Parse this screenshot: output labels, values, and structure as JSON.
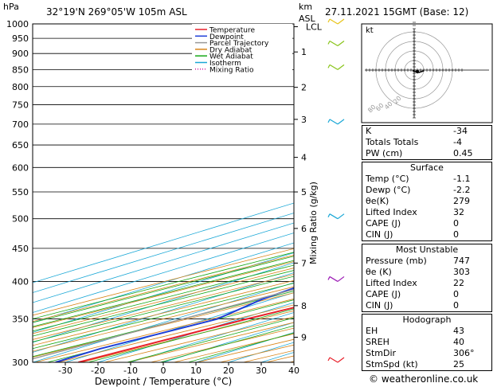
{
  "header": {
    "hpa_label": "hPa",
    "location": "32°19'N  269°05'W  105m  ASL",
    "km_label": "km",
    "asl_label": "ASL",
    "datetime": "27.11.2021  15GMT  (Base: 12)"
  },
  "chart_data": {
    "type": "line",
    "title": "32°19'N  269°05'W  105m  ASL",
    "xlabel": "Dewpoint / Temperature (°C)",
    "ylabel": "hPa",
    "right_label": "Mixing Ratio (g/kg)",
    "xlim": [
      -40,
      40
    ],
    "ylim": [
      1000,
      300
    ],
    "y_scale": "log",
    "x_ticks": [
      -30,
      -20,
      -10,
      0,
      10,
      20,
      30,
      40
    ],
    "p_ticks": [
      300,
      350,
      400,
      450,
      500,
      550,
      600,
      650,
      700,
      750,
      800,
      850,
      900,
      950,
      1000
    ],
    "km_ticks": [
      {
        "label": "9",
        "p": 328
      },
      {
        "label": "8",
        "p": 367
      },
      {
        "label": "7",
        "p": 427
      },
      {
        "label": "6",
        "p": 483
      },
      {
        "label": "5",
        "p": 550
      },
      {
        "label": "4",
        "p": 622
      },
      {
        "label": "3",
        "p": 712
      },
      {
        "label": "2",
        "p": 798
      },
      {
        "label": "1",
        "p": 905
      },
      {
        "label": "LCL",
        "p": 990
      }
    ],
    "mixing_ratio_labels": [
      "2",
      "3",
      "4",
      "6",
      "8",
      "10",
      "15",
      "20",
      "25"
    ],
    "mixing_ratio_label_p": 582,
    "legend": [
      {
        "name": "Temperature",
        "color": "#e8202a"
      },
      {
        "name": "Dewpoint",
        "color": "#1f3fd8"
      },
      {
        "name": "Parcel Trajectory",
        "color": "#999999"
      },
      {
        "name": "Dry Adiabat",
        "color": "#d9851a"
      },
      {
        "name": "Wet Adiabat",
        "color": "#17a817"
      },
      {
        "name": "Isotherm",
        "color": "#19a7d6"
      },
      {
        "name": "Mixing Ratio",
        "color": "#d0199f"
      }
    ],
    "series": [
      {
        "name": "Temperature",
        "color": "#e8202a",
        "points": [
          [
            -1.1,
            1000
          ],
          [
            -0.5,
            990
          ],
          [
            3,
            970
          ],
          [
            4,
            950
          ],
          [
            7,
            920
          ],
          [
            9,
            900
          ],
          [
            11,
            850
          ],
          [
            11,
            800
          ],
          [
            12,
            750
          ],
          [
            12,
            700
          ],
          [
            10,
            650
          ],
          [
            8,
            600
          ],
          [
            4,
            550
          ],
          [
            0,
            500
          ],
          [
            -3,
            450
          ],
          [
            -7,
            420
          ],
          [
            -12,
            380
          ],
          [
            -18,
            350
          ],
          [
            -26,
            300
          ]
        ]
      },
      {
        "name": "Dewpoint",
        "color": "#1f3fd8",
        "points": [
          [
            -2.2,
            1000
          ],
          [
            -4,
            990
          ],
          [
            -8,
            975
          ],
          [
            -11,
            955
          ],
          [
            -45,
            945
          ],
          [
            -15,
            920
          ],
          [
            -45,
            892
          ],
          [
            -48,
            853
          ],
          [
            -44,
            820
          ],
          [
            -38,
            790
          ],
          [
            -26,
            750
          ],
          [
            -12,
            740
          ],
          [
            -15,
            718
          ],
          [
            -24,
            707
          ],
          [
            -13,
            690
          ],
          [
            -16,
            640
          ],
          [
            -17,
            600
          ],
          [
            -37,
            560
          ],
          [
            -48,
            540
          ],
          [
            -40,
            525
          ],
          [
            -56,
            510
          ],
          [
            -53,
            500
          ],
          [
            -43,
            475
          ],
          [
            -43,
            445
          ],
          [
            -36,
            430
          ],
          [
            -45,
            410
          ],
          [
            -35,
            395
          ],
          [
            -33,
            375
          ],
          [
            -27,
            350
          ],
          [
            -33,
            315
          ],
          [
            -33,
            300
          ]
        ]
      },
      {
        "name": "Parcel Trajectory",
        "color": "#999999",
        "points": [
          [
            -1.1,
            1000
          ],
          [
            -2,
            990
          ],
          [
            -5,
            900
          ],
          [
            -8,
            800
          ],
          [
            -12,
            700
          ],
          [
            -17,
            600
          ],
          [
            -23,
            500
          ],
          [
            -32,
            400
          ],
          [
            -44,
            300
          ]
        ]
      }
    ],
    "wind_barbs": [
      {
        "p": 300,
        "color": "#e8202a"
      },
      {
        "p": 400,
        "color": "#9b19b5"
      },
      {
        "p": 500,
        "color": "#19a7d6"
      },
      {
        "p": 700,
        "color": "#19a7d6"
      },
      {
        "p": 850,
        "color": "#88c419"
      },
      {
        "p": 925,
        "color": "#88c419"
      },
      {
        "p": 1000,
        "color": "#e8c419"
      }
    ]
  },
  "hodograph": {
    "unit_label": "kt",
    "ring_labels": [
      "20",
      "40",
      "60",
      "80"
    ]
  },
  "indices": [
    {
      "label": "K",
      "value": "-34"
    },
    {
      "label": "Totals Totals",
      "value": "-4"
    },
    {
      "label": "PW (cm)",
      "value": "0.45"
    }
  ],
  "surface": {
    "title": "Surface",
    "rows": [
      {
        "label": "Temp (°C)",
        "value": "-1.1"
      },
      {
        "label": "Dewp (°C)",
        "value": "-2.2"
      },
      {
        "label": "θe(K)",
        "value": "279"
      },
      {
        "label": "Lifted Index",
        "value": "32"
      },
      {
        "label": "CAPE (J)",
        "value": "0"
      },
      {
        "label": "CIN (J)",
        "value": "0"
      }
    ]
  },
  "most_unstable": {
    "title": "Most Unstable",
    "rows": [
      {
        "label": "Pressure (mb)",
        "value": "747"
      },
      {
        "label": "θe (K)",
        "value": "303"
      },
      {
        "label": "Lifted Index",
        "value": "22"
      },
      {
        "label": "CAPE (J)",
        "value": "0"
      },
      {
        "label": "CIN (J)",
        "value": "0"
      }
    ]
  },
  "hodograph_table": {
    "title": "Hodograph",
    "rows": [
      {
        "label": "EH",
        "value": "43"
      },
      {
        "label": "SREH",
        "value": "40"
      },
      {
        "label": "StmDir",
        "value": "306°"
      },
      {
        "label": "StmSpd (kt)",
        "value": "25"
      }
    ]
  },
  "credit": "© weatheronline.co.uk"
}
